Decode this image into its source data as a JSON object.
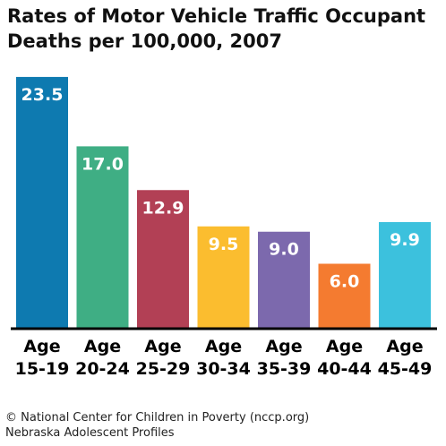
{
  "chart_data": {
    "type": "bar",
    "title": "Rates of Motor Vehicle Traffic Occupant Deaths per 100,000, 2007",
    "xlabel": "",
    "ylabel": "",
    "ylim": [
      0,
      24.5
    ],
    "grid": false,
    "legend": "none",
    "categories": [
      "Age 15-19",
      "Age 20-24",
      "Age 25-29",
      "Age 30-34",
      "Age 35-39",
      "Age 40-44",
      "Age 45-49"
    ],
    "category_lines": [
      [
        "Age",
        "15-19"
      ],
      [
        "Age",
        "20-24"
      ],
      [
        "Age",
        "25-29"
      ],
      [
        "Age",
        "30-34"
      ],
      [
        "Age",
        "35-39"
      ],
      [
        "Age",
        "40-44"
      ],
      [
        "Age",
        "45-49"
      ]
    ],
    "values": [
      23.5,
      17.0,
      12.9,
      9.5,
      9.0,
      6.0,
      9.9
    ],
    "value_labels": [
      "23.5",
      "17.0",
      "12.9",
      "9.5",
      "9.0",
      "6.0",
      "9.9"
    ],
    "colors": [
      "#0e7ab0",
      "#3fae84",
      "#b24055",
      "#fbbd2f",
      "#7c69ad",
      "#f47b30",
      "#3cc1dd"
    ],
    "label_color": "#ffffff",
    "axis_color": "#000000"
  },
  "footer": {
    "line1": "© National Center for Children in Poverty (nccp.org)",
    "line2": "Nebraska Adolescent Profiles"
  }
}
